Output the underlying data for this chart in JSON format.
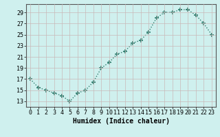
{
  "x": [
    0,
    1,
    2,
    3,
    4,
    5,
    6,
    7,
    8,
    9,
    10,
    11,
    12,
    13,
    14,
    15,
    16,
    17,
    18,
    19,
    20,
    21,
    22,
    23
  ],
  "y": [
    17,
    15.5,
    15,
    14.5,
    14,
    13,
    14.5,
    15,
    16.5,
    19,
    20,
    21.5,
    22,
    23.5,
    24,
    25.5,
    28,
    29,
    29,
    29.5,
    29.5,
    28.5,
    27,
    25
  ],
  "line_color": "#2e7d6e",
  "marker": "+",
  "marker_size": 4,
  "linewidth": 1.0,
  "bg_color": "#cff0ee",
  "grid_color": "#c8b8b8",
  "xlabel": "Humidex (Indice chaleur)",
  "xlim": [
    -0.5,
    23.5
  ],
  "ylim": [
    12,
    30.5
  ],
  "yticks": [
    13,
    15,
    17,
    19,
    21,
    23,
    25,
    27,
    29
  ],
  "xticks": [
    0,
    1,
    2,
    3,
    4,
    5,
    6,
    7,
    8,
    9,
    10,
    11,
    12,
    13,
    14,
    15,
    16,
    17,
    18,
    19,
    20,
    21,
    22,
    23
  ],
  "xlabel_fontsize": 7,
  "tick_fontsize": 6
}
